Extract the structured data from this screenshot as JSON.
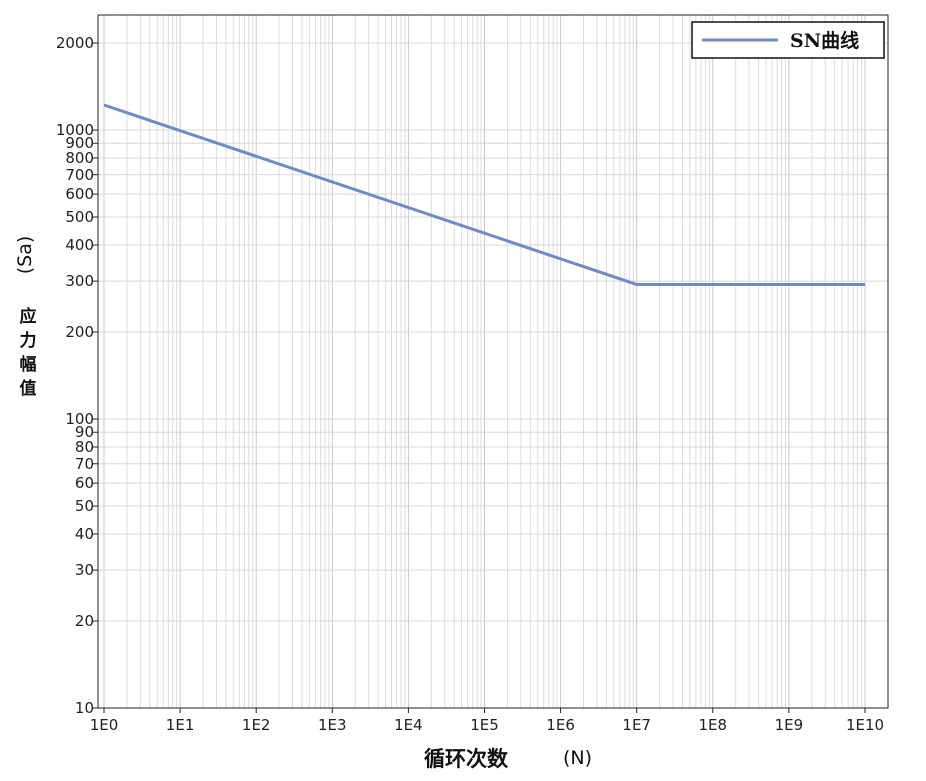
{
  "chart_data": {
    "type": "line",
    "x_scale": "log10",
    "y_scale": "log10",
    "xlim": [
      1,
      10000000000
    ],
    "ylim": [
      10,
      2500
    ],
    "x_tick_labels": [
      "1E0",
      "1E1",
      "1E2",
      "1E3",
      "1E4",
      "1E5",
      "1E6",
      "1E7",
      "1E8",
      "1E9",
      "1E10"
    ],
    "x_tick_values": [
      1,
      10,
      100,
      1000,
      10000,
      100000,
      1000000,
      10000000,
      100000000,
      1000000000,
      10000000000
    ],
    "y_tick_labels": [
      "10",
      "20",
      "30",
      "40",
      "50",
      "60",
      "70",
      "80",
      "90",
      "100",
      "200",
      "300",
      "400",
      "500",
      "600",
      "700",
      "800",
      "900",
      "1000",
      "2000"
    ],
    "y_tick_values": [
      10,
      20,
      30,
      40,
      50,
      60,
      70,
      80,
      90,
      100,
      200,
      300,
      400,
      500,
      600,
      700,
      800,
      900,
      1000,
      2000
    ],
    "xlabel": "循环次数",
    "xlabel_unit": "(N)",
    "ylabel": "应力幅值",
    "ylabel_unit": "(Sa)",
    "grid": true,
    "legend_position": "top-right",
    "series": [
      {
        "name": "SN曲线",
        "color": "#6f8bc6",
        "points": [
          [
            1,
            1220
          ],
          [
            10000000,
            292
          ],
          [
            10000000000,
            292
          ]
        ]
      }
    ]
  }
}
